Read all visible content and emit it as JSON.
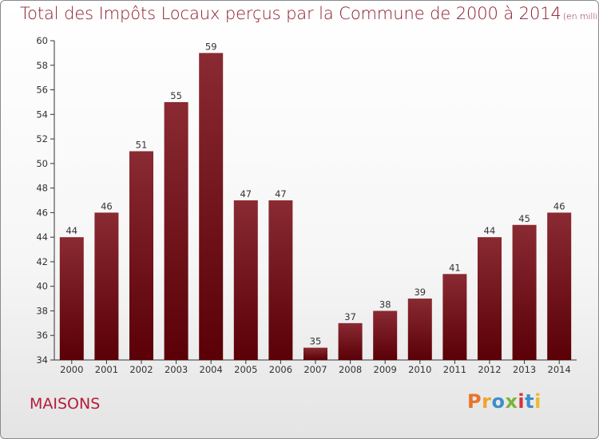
{
  "page": {
    "title": "Total des Impôts Locaux perçus par la Commune de 2000 à 2014",
    "subtitle": "(en milliers d'€)",
    "commune": "MAISONS",
    "logo_letters": [
      "P",
      "r",
      "o",
      "x",
      "i",
      "t",
      "i"
    ],
    "logo_colors": [
      "#e8742a",
      "#f2a22c",
      "#3d8fcb",
      "#7cb33d",
      "#d6323b",
      "#3d8fcb",
      "#f0b82c"
    ]
  },
  "chart_data": {
    "type": "bar",
    "title": "Total des Impôts Locaux perçus par la Commune de 2000 à 2014",
    "xlabel": "",
    "ylabel": "",
    "categories": [
      "2000",
      "2001",
      "2002",
      "2003",
      "2004",
      "2005",
      "2006",
      "2007",
      "2008",
      "2009",
      "2010",
      "2011",
      "2012",
      "2013",
      "2014"
    ],
    "values": [
      44,
      46,
      51,
      55,
      59,
      47,
      47,
      35,
      37,
      38,
      39,
      41,
      44,
      45,
      46
    ],
    "ylim": [
      34,
      60
    ],
    "yticks": [
      34,
      36,
      38,
      40,
      42,
      44,
      46,
      48,
      50,
      52,
      54,
      56,
      58,
      60
    ],
    "grid": false,
    "bar_color": "#7a1c24",
    "label_color": "#333333"
  }
}
